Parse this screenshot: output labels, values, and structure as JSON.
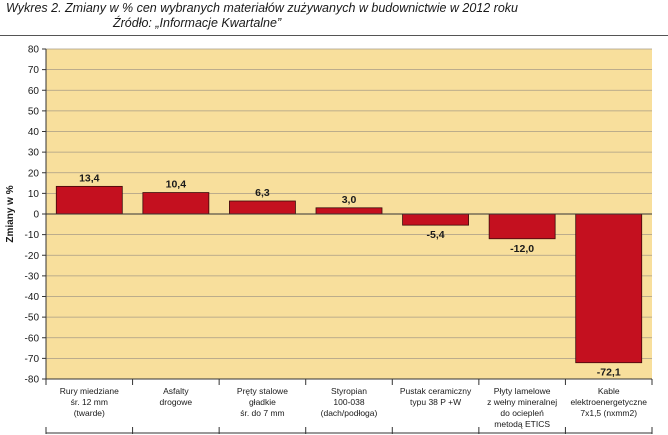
{
  "title": {
    "line1": "Wykres 2. Zmiany w % cen wybranych materiałów zużywanych w budownictwie w 2012 roku",
    "line2": "Źródło: „Informacje Kwartalne”"
  },
  "colors": {
    "plot_background": "#f8df9c",
    "bar": "#c4101f",
    "grid": "#a89c86",
    "axis": "#333333",
    "text": "#1a1a1a"
  },
  "chart_data": {
    "type": "bar",
    "categories": [
      [
        "Rury miedziane",
        "śr. 12 mm",
        "(twarde)"
      ],
      [
        "Asfalty",
        "drogowe"
      ],
      [
        "Pręty stalowe",
        "gładkie",
        "śr. do 7 mm"
      ],
      [
        "Styropian",
        "100-038",
        "(dach/podłoga)"
      ],
      [
        "Pustak ceramiczny",
        "typu 38 P +W"
      ],
      [
        "Płyty lamelowe",
        "z wełny mineralnej",
        "do ociepleń",
        "metodą ETICS"
      ],
      [
        "Kable",
        "elektroenergetyczne",
        "7x1,5 (nxmm2)"
      ]
    ],
    "values": [
      13.4,
      10.4,
      6.3,
      3.0,
      -5.4,
      -12.0,
      -72.1
    ],
    "value_labels": [
      "13,4",
      "10,4",
      "6,3",
      "3,0",
      "-5,4",
      "-12,0",
      "-72,1"
    ],
    "ylabel": "Zmiany w %",
    "xlabel": "",
    "ylim": [
      -80,
      80
    ],
    "yticks": [
      80,
      70,
      60,
      50,
      40,
      30,
      20,
      10,
      0,
      -10,
      -20,
      -30,
      -40,
      -50,
      -60,
      -70,
      -80
    ],
    "grid": true,
    "legend": "none"
  }
}
